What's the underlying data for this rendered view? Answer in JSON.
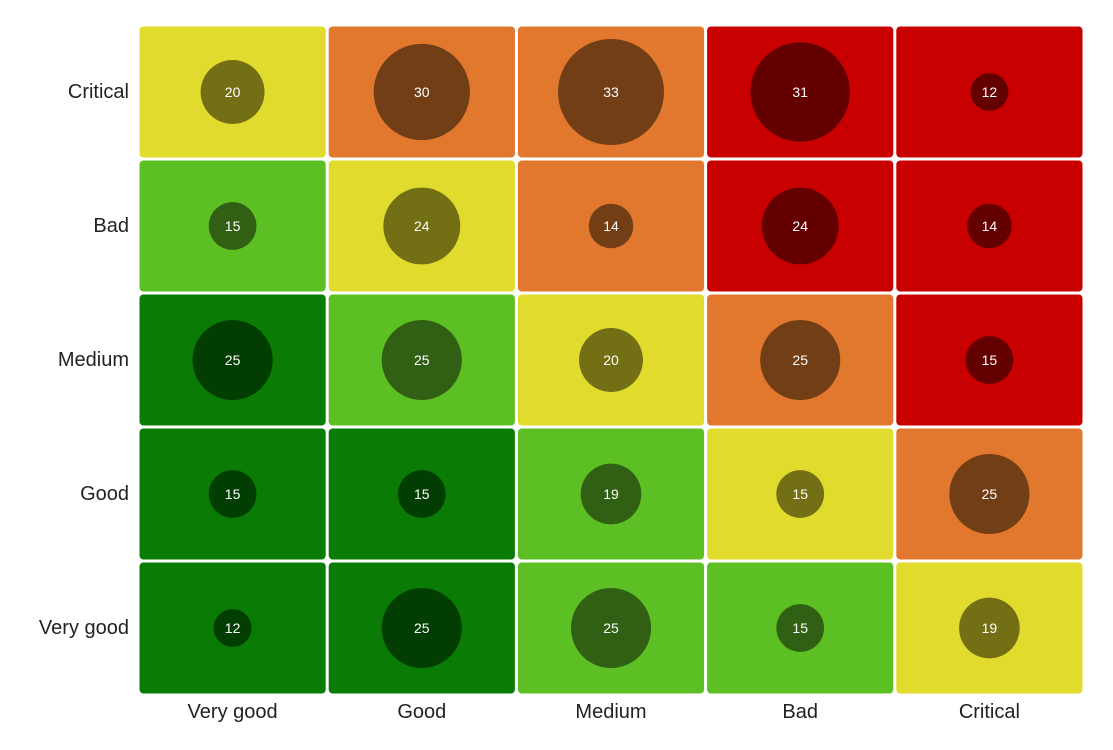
{
  "chart_data": {
    "type": "heatmap",
    "x_categories": [
      "Very good",
      "Good",
      "Medium",
      "Bad",
      "Critical"
    ],
    "y_categories": [
      "Very good",
      "Good",
      "Medium",
      "Bad",
      "Critical"
    ],
    "cells": [
      {
        "x": "Very good",
        "y": "Critical",
        "value": 20,
        "level": "medium"
      },
      {
        "x": "Good",
        "y": "Critical",
        "value": 30,
        "level": "bad"
      },
      {
        "x": "Medium",
        "y": "Critical",
        "value": 33,
        "level": "bad"
      },
      {
        "x": "Bad",
        "y": "Critical",
        "value": 31,
        "level": "critical"
      },
      {
        "x": "Critical",
        "y": "Critical",
        "value": 12,
        "level": "critical"
      },
      {
        "x": "Very good",
        "y": "Bad",
        "value": 15,
        "level": "good"
      },
      {
        "x": "Good",
        "y": "Bad",
        "value": 24,
        "level": "medium"
      },
      {
        "x": "Medium",
        "y": "Bad",
        "value": 14,
        "level": "bad"
      },
      {
        "x": "Bad",
        "y": "Bad",
        "value": 24,
        "level": "critical"
      },
      {
        "x": "Critical",
        "y": "Bad",
        "value": 14,
        "level": "critical"
      },
      {
        "x": "Very good",
        "y": "Medium",
        "value": 25,
        "level": "very-good"
      },
      {
        "x": "Good",
        "y": "Medium",
        "value": 25,
        "level": "good"
      },
      {
        "x": "Medium",
        "y": "Medium",
        "value": 20,
        "level": "medium"
      },
      {
        "x": "Bad",
        "y": "Medium",
        "value": 25,
        "level": "bad"
      },
      {
        "x": "Critical",
        "y": "Medium",
        "value": 15,
        "level": "critical"
      },
      {
        "x": "Very good",
        "y": "Good",
        "value": 15,
        "level": "very-good"
      },
      {
        "x": "Good",
        "y": "Good",
        "value": 15,
        "level": "very-good"
      },
      {
        "x": "Medium",
        "y": "Good",
        "value": 19,
        "level": "good"
      },
      {
        "x": "Bad",
        "y": "Good",
        "value": 15,
        "level": "medium"
      },
      {
        "x": "Critical",
        "y": "Good",
        "value": 25,
        "level": "bad"
      },
      {
        "x": "Very good",
        "y": "Very good",
        "value": 12,
        "level": "very-good"
      },
      {
        "x": "Good",
        "y": "Very good",
        "value": 25,
        "level": "very-good"
      },
      {
        "x": "Medium",
        "y": "Very good",
        "value": 25,
        "level": "good"
      },
      {
        "x": "Bad",
        "y": "Very good",
        "value": 15,
        "level": "good"
      },
      {
        "x": "Critical",
        "y": "Very good",
        "value": 19,
        "level": "medium"
      }
    ],
    "value_range": [
      12,
      33
    ],
    "grid": false,
    "legend": "none"
  },
  "colors": {
    "very-good": {
      "cell": "#0a7b04",
      "bubble": "#023e01"
    },
    "good": {
      "cell": "#5cbf24",
      "bubble": "#315f14"
    },
    "medium": {
      "cell": "#e0db2c",
      "bubble": "#726f14"
    },
    "bad": {
      "cell": "#e2772e",
      "bubble": "#723e16"
    },
    "critical": {
      "cell": "#c80000",
      "bubble": "#650000"
    }
  }
}
